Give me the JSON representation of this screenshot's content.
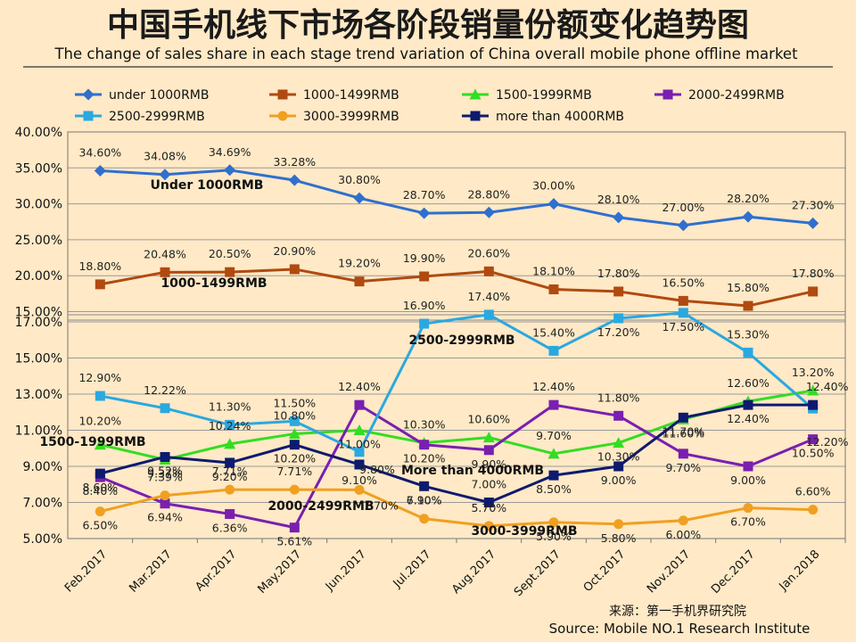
{
  "chart_data": {
    "type": "line",
    "title": "中国手机线下市场各阶段销量份额变化趋势图",
    "subtitle": "The change of sales share in each stage trend variation of China overall mobile phone offline market",
    "xlabel": "",
    "ylabel": "",
    "categories": [
      "Feb.2017",
      "Mar.2017",
      "Apr.2017",
      "May.2017",
      "Jun.2017",
      "Jul.2017",
      "Aug.2017",
      "Sept.2017",
      "Oct.2017",
      "Nov.2017",
      "Dec.2017",
      "Jan.2018"
    ],
    "upper_axis": {
      "ticks": [
        "40.00%",
        "35.00%",
        "30.00%",
        "25.00%",
        "20.00%",
        "15.00%"
      ],
      "ylim": [
        15,
        40
      ]
    },
    "lower_axis": {
      "ticks": [
        "17.00%",
        "15.00%",
        "13.00%",
        "11.00%",
        "9.00%",
        "7.00%",
        "5.00%"
      ],
      "ylim": [
        5,
        17.9
      ]
    },
    "series": [
      {
        "name": "under 1000RMB",
        "panel": "upper",
        "color": "#2f6fcf",
        "marker": "diamond",
        "values": [
          34.6,
          34.08,
          34.69,
          33.28,
          30.8,
          28.7,
          28.8,
          30.0,
          28.1,
          27.0,
          28.2,
          27.3
        ],
        "labels": [
          "34.60%",
          "34.08%",
          "34.69%",
          "33.28%",
          "30.80%",
          "28.70%",
          "28.80%",
          "30.00%",
          "28.10%",
          "27.00%",
          "28.20%",
          "27.30%"
        ]
      },
      {
        "name": "1000-1499RMB",
        "panel": "upper",
        "color": "#b04a10",
        "marker": "square",
        "values": [
          18.8,
          20.48,
          20.5,
          20.9,
          19.2,
          19.9,
          20.6,
          18.1,
          17.8,
          16.5,
          15.8,
          17.8
        ],
        "labels": [
          "18.80%",
          "20.48%",
          "20.50%",
          "20.90%",
          "19.20%",
          "19.90%",
          "20.60%",
          "18.10%",
          "17.80%",
          "16.50%",
          "15.80%",
          "17.80%"
        ]
      },
      {
        "name": "1500-1999RMB",
        "panel": "lower",
        "color": "#33dd22",
        "marker": "triangle",
        "values": [
          10.2,
          9.37,
          10.24,
          10.8,
          11.0,
          10.3,
          10.6,
          9.7,
          10.3,
          11.6,
          12.6,
          13.2
        ],
        "labels": [
          "10.20%",
          "9.37%",
          "10.24%",
          "10.80%",
          "11.00%",
          "10.30%",
          "10.60%",
          "9.70%",
          "10.30%",
          "11.60%",
          "12.60%",
          "13.20%"
        ]
      },
      {
        "name": "2000-2499RMB",
        "panel": "lower",
        "color": "#7a1fb0",
        "marker": "square",
        "values": [
          8.4,
          6.94,
          6.36,
          5.61,
          12.4,
          10.2,
          9.9,
          12.4,
          11.8,
          9.7,
          9.0,
          10.5
        ],
        "labels": [
          "8.40%",
          "6.94%",
          "6.36%",
          "5.61%",
          "12.40%",
          "10.20%",
          "9.90%",
          "12.40%",
          "11.80%",
          "9.70%",
          "9.00%",
          "10.50%"
        ]
      },
      {
        "name": "2500-2999RMB",
        "panel": "lower",
        "color": "#2aa8e0",
        "marker": "square",
        "values": [
          12.9,
          12.22,
          11.3,
          11.5,
          9.8,
          16.9,
          17.4,
          15.4,
          17.2,
          17.5,
          15.3,
          12.2
        ],
        "labels": [
          "12.90%",
          "12.22%",
          "11.30%",
          "11.50%",
          "9.80%",
          "16.90%",
          "17.40%",
          "15.40%",
          "17.20%",
          "17.50%",
          "15.30%",
          "12.20%"
        ]
      },
      {
        "name": "3000-3999RMB",
        "panel": "lower",
        "color": "#f0a020",
        "marker": "circle",
        "values": [
          6.5,
          7.39,
          7.71,
          7.71,
          7.7,
          6.1,
          5.7,
          5.9,
          5.8,
          6.0,
          6.7,
          6.6
        ],
        "labels": [
          "6.50%",
          "7.39%",
          "7.71%",
          "7.71%",
          "7.70%",
          "6.10%",
          "5.70%",
          "5.90%",
          "5.80%",
          "6.00%",
          "6.70%",
          "6.60%"
        ]
      },
      {
        "name": "more than 4000RMB",
        "panel": "lower",
        "color": "#0e1a6e",
        "marker": "square",
        "values": [
          8.6,
          9.52,
          9.2,
          10.2,
          9.1,
          7.9,
          7.0,
          8.5,
          9.0,
          11.7,
          12.4,
          12.4
        ],
        "labels": [
          "8.60%",
          "9.52%",
          "9.20%",
          "10.20%",
          "9.10%",
          "7.90%",
          "7.00%",
          "8.50%",
          "9.00%",
          "11.70%",
          "12.40%",
          "12.40%"
        ]
      }
    ],
    "annotations": [
      "Under 1000RMB",
      "1000-1499RMB",
      "2500-2999RMB",
      "1500-1999RMB",
      "More than 4000RMB",
      "2000-2499RMB",
      "3000-3999RMB"
    ],
    "legend_position": "top",
    "grid": true
  },
  "source": {
    "cn": "来源：第一手机界研究院",
    "en": "Source: Mobile NO.1 Research Institute"
  }
}
